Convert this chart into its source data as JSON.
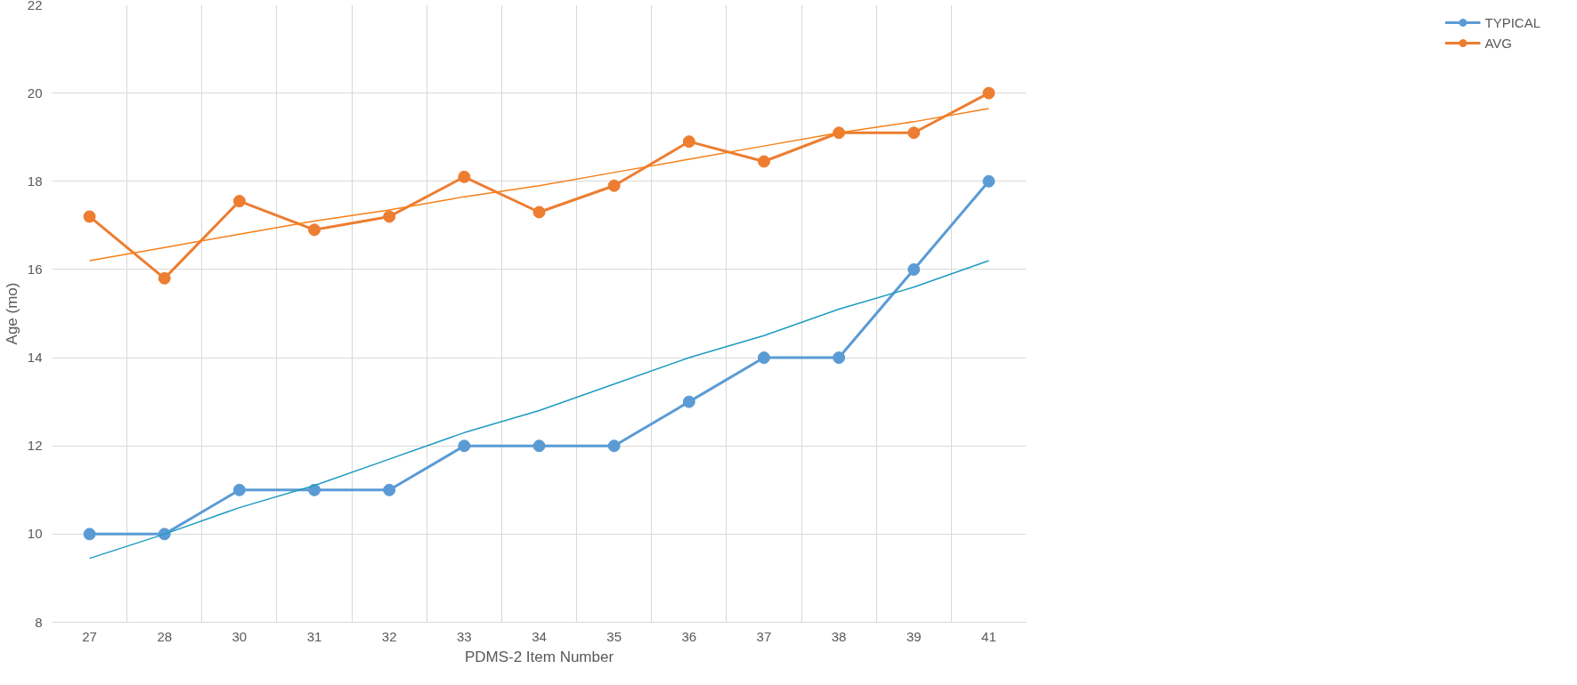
{
  "chart_data": {
    "type": "line",
    "xlabel": "PDMS-2 Item Number",
    "ylabel": "Age (mo)",
    "categories": [
      "27",
      "28",
      "30",
      "31",
      "32",
      "33",
      "34",
      "35",
      "36",
      "37",
      "38",
      "39",
      "41"
    ],
    "ylim": [
      8,
      22
    ],
    "yticks": [
      8,
      10,
      12,
      14,
      16,
      18,
      20,
      22
    ],
    "grid": true,
    "legend": "right",
    "marker": "circle",
    "line_style": "solid",
    "series": [
      {
        "name": "TYPICAL",
        "color": "#5b9bd5",
        "values": [
          10,
          10,
          11,
          11,
          11,
          12,
          12,
          12,
          13,
          14,
          14,
          16,
          18
        ]
      },
      {
        "name": "AVG",
        "color": "#ed7d31",
        "values": [
          17.2,
          15.8,
          17.55,
          16.9,
          17.2,
          18.1,
          17.3,
          17.9,
          18.9,
          18.45,
          19.1,
          19.1,
          20.0
        ]
      },
      {
        "color": "#1e9bc0",
        "marker": "none",
        "values": [
          9.45,
          10.0,
          10.6,
          11.1,
          11.7,
          12.3,
          12.8,
          13.4,
          14.0,
          14.5,
          15.1,
          15.6,
          16.2
        ]
      },
      {
        "color": "#f57f17",
        "marker": "none",
        "values": [
          16.2,
          16.5,
          16.8,
          17.1,
          17.35,
          17.65,
          17.9,
          18.2,
          18.5,
          18.8,
          19.1,
          19.35,
          19.65
        ]
      }
    ]
  }
}
